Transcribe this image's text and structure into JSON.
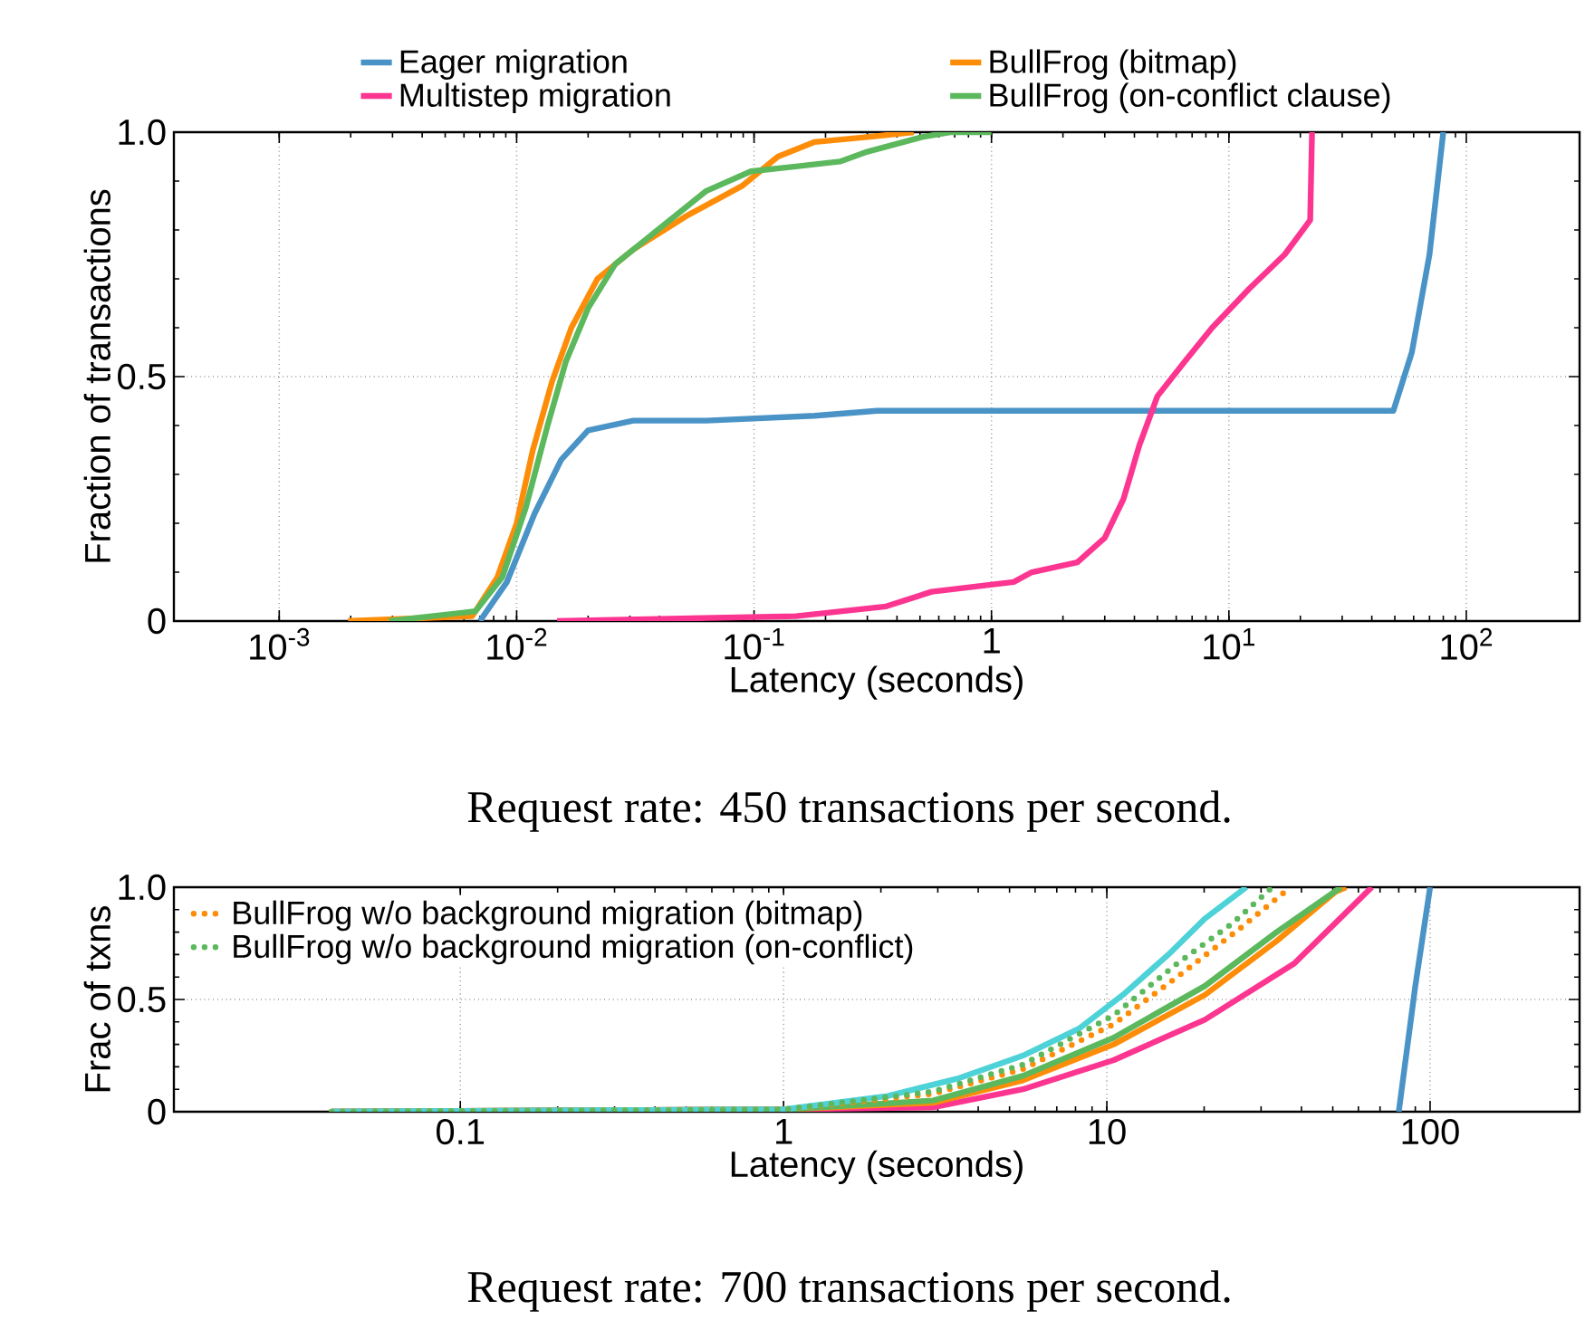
{
  "chart_data": [
    {
      "type": "line",
      "log": "x",
      "grid": true,
      "legend": "top",
      "xlabel": "Latency (seconds)",
      "ylabel": "Fraction of transactions",
      "xlim": [
        0.00036,
        300
      ],
      "ylim": [
        0,
        1
      ],
      "xticks": [
        {
          "value": 0.001,
          "label": "10$^{-3}$"
        },
        {
          "value": 0.01,
          "label": "10$^{-2}$"
        },
        {
          "value": 0.1,
          "label": "10$^{-1}$"
        },
        1,
        {
          "value": 10,
          "label": "10$^{1}$"
        },
        {
          "value": 100,
          "label": "10$^{2}$"
        }
      ],
      "yticks": [
        0,
        0.5,
        {
          "value": 1,
          "label": "1.0"
        }
      ],
      "annotations": [
        "Request rate: 450 transactions per second."
      ],
      "series": [
        {
          "name": "Eager migration",
          "color": "#4a93c6",
          "x": [
            0.007,
            0.0091,
            0.0119,
            0.0154,
            0.02,
            0.031,
            0.063,
            0.18,
            0.33,
            49.3,
            59,
            70,
            80
          ],
          "values": [
            0,
            0.08,
            0.22,
            0.33,
            0.39,
            0.41,
            0.41,
            0.42,
            0.43,
            0.43,
            0.55,
            0.75,
            1.0
          ]
        },
        {
          "name": "Multistep migration",
          "color": "#fc3591",
          "x": [
            0.0148,
            0.15,
            0.36,
            0.56,
            1.24,
            1.48,
            2.3,
            3.0,
            3.6,
            4.2,
            5.0,
            6.5,
            8.5,
            12.2,
            17.2,
            22,
            22.4
          ],
          "values": [
            0,
            0.01,
            0.03,
            0.06,
            0.08,
            0.1,
            0.12,
            0.17,
            0.25,
            0.36,
            0.46,
            0.53,
            0.6,
            0.68,
            0.75,
            0.82,
            1.0
          ]
        },
        {
          "name": "BullFrog (bitmap)",
          "color": "#fd8d08",
          "x": [
            0.00195,
            0.0065,
            0.0083,
            0.01,
            0.0117,
            0.0141,
            0.017,
            0.0219,
            0.031,
            0.0525,
            0.089,
            0.126,
            0.18,
            0.3,
            0.47
          ],
          "values": [
            0,
            0.01,
            0.09,
            0.2,
            0.35,
            0.49,
            0.6,
            0.7,
            0.76,
            0.83,
            0.89,
            0.95,
            0.98,
            0.99,
            1.0
          ]
        },
        {
          "name": "BullFrog (on-conflict clause)",
          "color": "#5cb85c",
          "x": [
            0.0029,
            0.0067,
            0.0087,
            0.0109,
            0.0135,
            0.0161,
            0.02,
            0.026,
            0.037,
            0.063,
            0.097,
            0.15,
            0.23,
            0.3,
            0.51,
            0.67,
            1.0
          ],
          "values": [
            0,
            0.02,
            0.09,
            0.23,
            0.4,
            0.53,
            0.64,
            0.73,
            0.79,
            0.88,
            0.92,
            0.93,
            0.94,
            0.96,
            0.99,
            1.0,
            1.0
          ]
        }
      ]
    },
    {
      "type": "line",
      "log": "x",
      "grid": true,
      "legend": "top left",
      "xlabel": "Latency (seconds)",
      "ylabel": "Frac of txns",
      "xlim": [
        0.013,
        290
      ],
      "ylim": [
        0,
        1
      ],
      "xticks": [
        0.1,
        1,
        10,
        100
      ],
      "yticks": [
        0,
        0.5,
        {
          "value": 1,
          "label": "1.0"
        }
      ],
      "annotations": [
        "Request rate: 700 transactions per second."
      ],
      "series": [
        {
          "color": "#4a93c6",
          "x": [
            80,
            90,
            100
          ],
          "values": [
            0,
            0.56,
            1.0
          ]
        },
        {
          "color": "#fc3591",
          "x": [
            0.04,
            1,
            2.9,
            5.5,
            10.5,
            20.1,
            38,
            66
          ],
          "values": [
            0,
            0.01,
            0.02,
            0.1,
            0.23,
            0.41,
            0.66,
            1.0
          ]
        },
        {
          "color": "#fd8d08",
          "x": [
            0.04,
            1,
            2.9,
            5.5,
            10.5,
            20.1,
            33.5,
            51,
            55
          ],
          "values": [
            0,
            0.01,
            0.04,
            0.14,
            0.3,
            0.52,
            0.76,
            0.98,
            1.0
          ]
        },
        {
          "color": "#5cb85c",
          "x": [
            0.04,
            1,
            2.9,
            5.5,
            10.5,
            20.1,
            33.5,
            53
          ],
          "values": [
            0,
            0.01,
            0.05,
            0.16,
            0.33,
            0.56,
            0.8,
            1.0
          ]
        },
        {
          "color": "#4dd2d8",
          "x": [
            0.04,
            1,
            2.1,
            3.5,
            5.5,
            8.2,
            11.2,
            15.5,
            20.1,
            27
          ],
          "values": [
            0,
            0.01,
            0.07,
            0.15,
            0.25,
            0.37,
            0.52,
            0.7,
            0.86,
            1.0
          ]
        },
        {
          "name": "BullFrog w/o background migration (bitmap)",
          "color": "#fd8d08",
          "line_style": "dotted",
          "x": [
            0.04,
            1,
            2.9,
            5.5,
            10.5,
            16.5,
            26,
            37
          ],
          "values": [
            0,
            0.01,
            0.08,
            0.19,
            0.39,
            0.6,
            0.82,
            1.0
          ]
        },
        {
          "name": "BullFrog w/o background migration (on-conflict)",
          "color": "#5cb85c",
          "line_style": "dotted",
          "x": [
            0.04,
            1,
            2.9,
            5.5,
            10.5,
            16.5,
            24.5,
            32.5
          ],
          "values": [
            0,
            0.01,
            0.09,
            0.21,
            0.43,
            0.66,
            0.84,
            1.0
          ]
        }
      ]
    }
  ]
}
